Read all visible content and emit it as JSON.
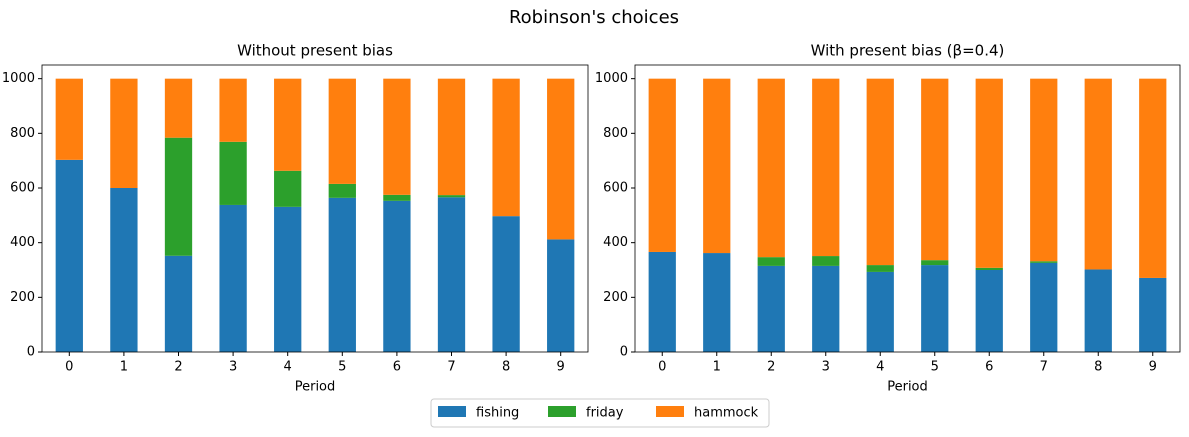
{
  "title": "Robinson's choices",
  "chart_data": [
    {
      "type": "stacked_bar",
      "title": "Without present bias",
      "x_label": "Period",
      "categories": [
        "0",
        "1",
        "2",
        "3",
        "4",
        "5",
        "6",
        "7",
        "8",
        "9"
      ],
      "series": [
        {
          "name": "fishing",
          "color": "#1f77b4",
          "values": [
            703,
            600,
            352,
            538,
            531,
            564,
            553,
            566,
            497,
            412
          ]
        },
        {
          "name": "friday",
          "color": "#2ca02c",
          "values": [
            0,
            0,
            432,
            231,
            132,
            51,
            22,
            8,
            0,
            0
          ]
        },
        {
          "name": "hammock",
          "color": "#ff7f0e",
          "values": [
            297,
            400,
            216,
            231,
            337,
            385,
            425,
            426,
            503,
            588
          ]
        }
      ],
      "ylim": [
        0,
        1050
      ],
      "yticks": [
        0,
        200,
        400,
        600,
        800,
        1000
      ],
      "legend": "bottom"
    },
    {
      "type": "stacked_bar",
      "title": "With present bias (β=0.4)",
      "x_label": "Period",
      "categories": [
        "0",
        "1",
        "2",
        "3",
        "4",
        "5",
        "6",
        "7",
        "8",
        "9"
      ],
      "series": [
        {
          "name": "fishing",
          "color": "#1f77b4",
          "values": [
            366,
            362,
            315,
            315,
            293,
            318,
            300,
            326,
            302,
            271
          ]
        },
        {
          "name": "friday",
          "color": "#2ca02c",
          "values": [
            0,
            0,
            32,
            36,
            25,
            18,
            8,
            6,
            0,
            0
          ]
        },
        {
          "name": "hammock",
          "color": "#ff7f0e",
          "values": [
            634,
            638,
            653,
            649,
            682,
            664,
            692,
            668,
            698,
            729
          ]
        }
      ],
      "ylim": [
        0,
        1050
      ],
      "yticks": [
        0,
        200,
        400,
        600,
        800,
        1000
      ]
    }
  ]
}
